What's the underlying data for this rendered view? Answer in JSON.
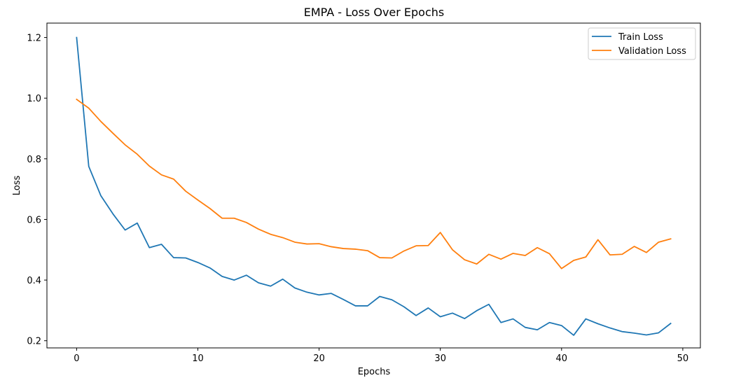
{
  "chart_data": {
    "type": "line",
    "title": "EMPA - Loss Over Epochs",
    "xlabel": "Epochs",
    "ylabel": "Loss",
    "xlim": [
      -2.45,
      51.45
    ],
    "ylim": [
      0.1763,
      1.2475
    ],
    "xticks": [
      0,
      10,
      20,
      30,
      40,
      50
    ],
    "xtick_labels": [
      "0",
      "10",
      "20",
      "30",
      "40",
      "50"
    ],
    "yticks": [
      0.2,
      0.4,
      0.6,
      0.8,
      1.0,
      1.2
    ],
    "ytick_labels": [
      "0.2",
      "0.4",
      "0.6",
      "0.8",
      "1.0",
      "1.2"
    ],
    "grid": false,
    "legend_position": "top-right",
    "x": [
      0,
      1,
      2,
      3,
      4,
      5,
      6,
      7,
      8,
      9,
      10,
      11,
      12,
      13,
      14,
      15,
      16,
      17,
      18,
      19,
      20,
      21,
      22,
      23,
      24,
      25,
      26,
      27,
      28,
      29,
      30,
      31,
      32,
      33,
      34,
      35,
      36,
      37,
      38,
      39,
      40,
      41,
      42,
      43,
      44,
      45,
      46,
      47,
      48,
      49
    ],
    "series": [
      {
        "name": "Train Loss",
        "color": "#1f77b4",
        "values": [
          1.2,
          0.775,
          0.678,
          0.618,
          0.565,
          0.588,
          0.507,
          0.518,
          0.474,
          0.473,
          0.458,
          0.44,
          0.412,
          0.4,
          0.416,
          0.391,
          0.38,
          0.403,
          0.374,
          0.36,
          0.351,
          0.356,
          0.336,
          0.315,
          0.315,
          0.346,
          0.335,
          0.312,
          0.283,
          0.308,
          0.279,
          0.291,
          0.273,
          0.299,
          0.32,
          0.26,
          0.272,
          0.244,
          0.236,
          0.26,
          0.25,
          0.218,
          0.272,
          0.256,
          0.242,
          0.23,
          0.225,
          0.219,
          0.226,
          0.257
        ]
      },
      {
        "name": "Validation Loss",
        "color": "#ff7f0e",
        "values": [
          0.996,
          0.967,
          0.923,
          0.884,
          0.846,
          0.815,
          0.776,
          0.747,
          0.733,
          0.693,
          0.664,
          0.636,
          0.604,
          0.604,
          0.59,
          0.568,
          0.551,
          0.54,
          0.525,
          0.519,
          0.52,
          0.51,
          0.504,
          0.502,
          0.497,
          0.474,
          0.473,
          0.496,
          0.513,
          0.514,
          0.557,
          0.5,
          0.467,
          0.453,
          0.485,
          0.469,
          0.488,
          0.481,
          0.507,
          0.487,
          0.438,
          0.465,
          0.476,
          0.533,
          0.483,
          0.485,
          0.511,
          0.491,
          0.525,
          0.536
        ]
      }
    ]
  }
}
